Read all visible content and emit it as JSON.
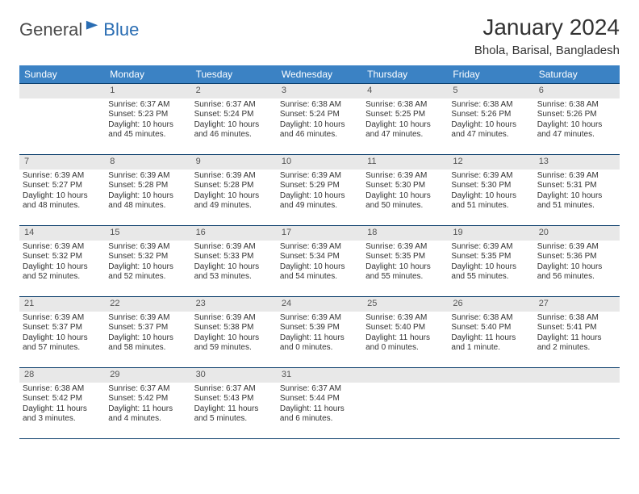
{
  "logo": {
    "part1": "General",
    "part2": "Blue"
  },
  "header": {
    "title": "January 2024",
    "location": "Bhola, Barisal, Bangladesh"
  },
  "colors": {
    "header_blue": "#3b82c4",
    "border_blue": "#0a3d6b",
    "daynum_bg": "#e8e8e8",
    "logo_blue": "#2a6db3",
    "page_bg": "#ffffff",
    "text": "#222222"
  },
  "calendar": {
    "weekdays": [
      "Sunday",
      "Monday",
      "Tuesday",
      "Wednesday",
      "Thursday",
      "Friday",
      "Saturday"
    ],
    "weeks": [
      [
        {
          "day": "",
          "lines": []
        },
        {
          "day": "1",
          "lines": [
            "Sunrise: 6:37 AM",
            "Sunset: 5:23 PM",
            "Daylight: 10 hours and 45 minutes."
          ]
        },
        {
          "day": "2",
          "lines": [
            "Sunrise: 6:37 AM",
            "Sunset: 5:24 PM",
            "Daylight: 10 hours and 46 minutes."
          ]
        },
        {
          "day": "3",
          "lines": [
            "Sunrise: 6:38 AM",
            "Sunset: 5:24 PM",
            "Daylight: 10 hours and 46 minutes."
          ]
        },
        {
          "day": "4",
          "lines": [
            "Sunrise: 6:38 AM",
            "Sunset: 5:25 PM",
            "Daylight: 10 hours and 47 minutes."
          ]
        },
        {
          "day": "5",
          "lines": [
            "Sunrise: 6:38 AM",
            "Sunset: 5:26 PM",
            "Daylight: 10 hours and 47 minutes."
          ]
        },
        {
          "day": "6",
          "lines": [
            "Sunrise: 6:38 AM",
            "Sunset: 5:26 PM",
            "Daylight: 10 hours and 47 minutes."
          ]
        }
      ],
      [
        {
          "day": "7",
          "lines": [
            "Sunrise: 6:39 AM",
            "Sunset: 5:27 PM",
            "Daylight: 10 hours and 48 minutes."
          ]
        },
        {
          "day": "8",
          "lines": [
            "Sunrise: 6:39 AM",
            "Sunset: 5:28 PM",
            "Daylight: 10 hours and 48 minutes."
          ]
        },
        {
          "day": "9",
          "lines": [
            "Sunrise: 6:39 AM",
            "Sunset: 5:28 PM",
            "Daylight: 10 hours and 49 minutes."
          ]
        },
        {
          "day": "10",
          "lines": [
            "Sunrise: 6:39 AM",
            "Sunset: 5:29 PM",
            "Daylight: 10 hours and 49 minutes."
          ]
        },
        {
          "day": "11",
          "lines": [
            "Sunrise: 6:39 AM",
            "Sunset: 5:30 PM",
            "Daylight: 10 hours and 50 minutes."
          ]
        },
        {
          "day": "12",
          "lines": [
            "Sunrise: 6:39 AM",
            "Sunset: 5:30 PM",
            "Daylight: 10 hours and 51 minutes."
          ]
        },
        {
          "day": "13",
          "lines": [
            "Sunrise: 6:39 AM",
            "Sunset: 5:31 PM",
            "Daylight: 10 hours and 51 minutes."
          ]
        }
      ],
      [
        {
          "day": "14",
          "lines": [
            "Sunrise: 6:39 AM",
            "Sunset: 5:32 PM",
            "Daylight: 10 hours and 52 minutes."
          ]
        },
        {
          "day": "15",
          "lines": [
            "Sunrise: 6:39 AM",
            "Sunset: 5:32 PM",
            "Daylight: 10 hours and 52 minutes."
          ]
        },
        {
          "day": "16",
          "lines": [
            "Sunrise: 6:39 AM",
            "Sunset: 5:33 PM",
            "Daylight: 10 hours and 53 minutes."
          ]
        },
        {
          "day": "17",
          "lines": [
            "Sunrise: 6:39 AM",
            "Sunset: 5:34 PM",
            "Daylight: 10 hours and 54 minutes."
          ]
        },
        {
          "day": "18",
          "lines": [
            "Sunrise: 6:39 AM",
            "Sunset: 5:35 PM",
            "Daylight: 10 hours and 55 minutes."
          ]
        },
        {
          "day": "19",
          "lines": [
            "Sunrise: 6:39 AM",
            "Sunset: 5:35 PM",
            "Daylight: 10 hours and 55 minutes."
          ]
        },
        {
          "day": "20",
          "lines": [
            "Sunrise: 6:39 AM",
            "Sunset: 5:36 PM",
            "Daylight: 10 hours and 56 minutes."
          ]
        }
      ],
      [
        {
          "day": "21",
          "lines": [
            "Sunrise: 6:39 AM",
            "Sunset: 5:37 PM",
            "Daylight: 10 hours and 57 minutes."
          ]
        },
        {
          "day": "22",
          "lines": [
            "Sunrise: 6:39 AM",
            "Sunset: 5:37 PM",
            "Daylight: 10 hours and 58 minutes."
          ]
        },
        {
          "day": "23",
          "lines": [
            "Sunrise: 6:39 AM",
            "Sunset: 5:38 PM",
            "Daylight: 10 hours and 59 minutes."
          ]
        },
        {
          "day": "24",
          "lines": [
            "Sunrise: 6:39 AM",
            "Sunset: 5:39 PM",
            "Daylight: 11 hours and 0 minutes."
          ]
        },
        {
          "day": "25",
          "lines": [
            "Sunrise: 6:39 AM",
            "Sunset: 5:40 PM",
            "Daylight: 11 hours and 0 minutes."
          ]
        },
        {
          "day": "26",
          "lines": [
            "Sunrise: 6:38 AM",
            "Sunset: 5:40 PM",
            "Daylight: 11 hours and 1 minute."
          ]
        },
        {
          "day": "27",
          "lines": [
            "Sunrise: 6:38 AM",
            "Sunset: 5:41 PM",
            "Daylight: 11 hours and 2 minutes."
          ]
        }
      ],
      [
        {
          "day": "28",
          "lines": [
            "Sunrise: 6:38 AM",
            "Sunset: 5:42 PM",
            "Daylight: 11 hours and 3 minutes."
          ]
        },
        {
          "day": "29",
          "lines": [
            "Sunrise: 6:37 AM",
            "Sunset: 5:42 PM",
            "Daylight: 11 hours and 4 minutes."
          ]
        },
        {
          "day": "30",
          "lines": [
            "Sunrise: 6:37 AM",
            "Sunset: 5:43 PM",
            "Daylight: 11 hours and 5 minutes."
          ]
        },
        {
          "day": "31",
          "lines": [
            "Sunrise: 6:37 AM",
            "Sunset: 5:44 PM",
            "Daylight: 11 hours and 6 minutes."
          ]
        },
        {
          "day": "",
          "lines": []
        },
        {
          "day": "",
          "lines": []
        },
        {
          "day": "",
          "lines": []
        }
      ]
    ]
  }
}
